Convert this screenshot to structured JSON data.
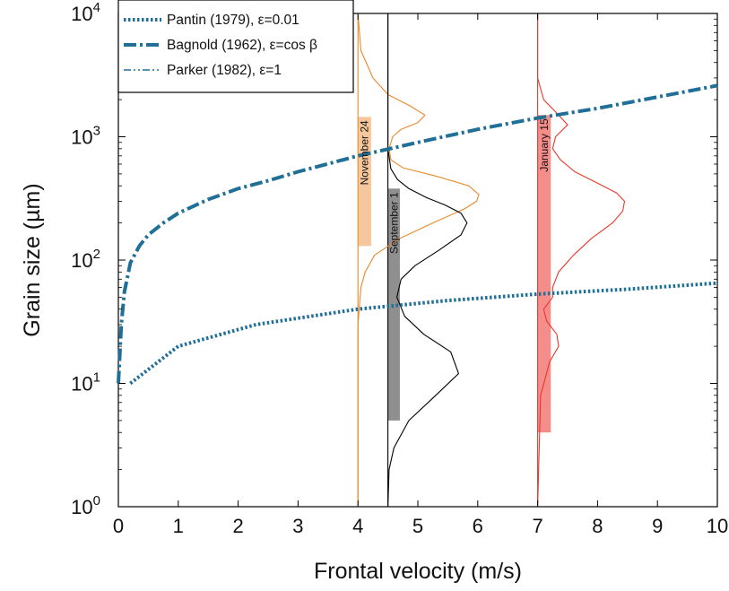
{
  "chart_data": {
    "type": "line",
    "xlabel": "Frontal velocity (m/s)",
    "ylabel": "Grain size  (µm)",
    "xlim": [
      0,
      10
    ],
    "ylim": [
      1,
      10000
    ],
    "yscale": "log",
    "grid": false,
    "legend_position": "top-left",
    "x_ticks": [
      "0",
      "1",
      "2",
      "3",
      "4",
      "5",
      "6",
      "7",
      "8",
      "9",
      "10"
    ],
    "y_ticks": [
      {
        "value": 1,
        "base": "10",
        "exp": "0"
      },
      {
        "value": 10,
        "base": "10",
        "exp": "1"
      },
      {
        "value": 100,
        "base": "10",
        "exp": "2"
      },
      {
        "value": 1000,
        "base": "10",
        "exp": "3"
      },
      {
        "value": 10000,
        "base": "10",
        "exp": "4"
      }
    ],
    "series": [
      {
        "name": "Pantin (1979), ε=0.01",
        "style": "dotted",
        "color": "#1f6f97",
        "x": [
          0.2,
          1.0,
          2.3,
          4.0,
          5.5,
          7.0,
          8.5,
          10.0
        ],
        "y": [
          10,
          20,
          30,
          40,
          47,
          53,
          58,
          65
        ]
      },
      {
        "name": "Bagnold (1962), ε=cos β",
        "style": "dashdot",
        "color": "#1f6f97",
        "x": [
          0.0,
          0.05,
          0.1,
          0.2,
          0.35,
          0.5,
          0.75,
          1.0,
          1.5,
          2.0,
          2.5,
          3.0,
          4.0,
          5.0,
          6.0,
          7.0,
          8.0,
          9.0,
          10.0
        ],
        "y": [
          10,
          30,
          55,
          95,
          130,
          160,
          200,
          240,
          310,
          380,
          440,
          520,
          700,
          900,
          1150,
          1420,
          1700,
          2100,
          2600
        ]
      },
      {
        "name": "Parker (1982), ε=1",
        "style": "dashdotdot",
        "color": "#1f6f97",
        "x": [],
        "y": []
      }
    ],
    "events": [
      {
        "label": "November 24",
        "x": 4.0,
        "color": "#e8892a",
        "band_color": "#f6c79c",
        "band_x": [
          4.0,
          4.22
        ],
        "band_y": [
          130,
          1450
        ]
      },
      {
        "label": "September 1",
        "x": 4.5,
        "color": "#000000",
        "band_color": "#8f8f8f",
        "band_x": [
          4.5,
          4.7
        ],
        "band_y": [
          5,
          380
        ]
      },
      {
        "label": "January 15",
        "x": 7.0,
        "color": "#e8372a",
        "band_color": "#f58e8b",
        "band_x": [
          7.0,
          7.22
        ],
        "band_y": [
          4,
          1500
        ]
      }
    ],
    "distributions": [
      {
        "event": "November 24",
        "color": "#e8892a",
        "y": [
          1,
          30,
          60,
          80,
          110,
          150,
          200,
          260,
          300,
          340,
          400,
          480,
          560,
          650,
          800,
          1000,
          1150,
          1300,
          1500,
          1800,
          2200,
          3000,
          5000,
          10000
        ],
        "x": [
          4.0,
          4.0,
          4.05,
          4.12,
          4.28,
          4.7,
          5.25,
          5.78,
          5.98,
          6.02,
          5.85,
          5.3,
          4.75,
          4.55,
          4.52,
          4.58,
          4.72,
          5.0,
          5.12,
          4.85,
          4.5,
          4.25,
          4.05,
          4.0
        ]
      },
      {
        "event": "September 1",
        "color": "#000000",
        "y": [
          1,
          2,
          3,
          5,
          8,
          12,
          18,
          25,
          35,
          50,
          70,
          90,
          120,
          160,
          200,
          240,
          280,
          320,
          380,
          450,
          550,
          800,
          1500,
          10000
        ],
        "x": [
          4.5,
          4.52,
          4.6,
          4.85,
          5.3,
          5.68,
          5.55,
          5.1,
          4.78,
          4.65,
          4.72,
          4.95,
          5.35,
          5.72,
          5.82,
          5.72,
          5.45,
          5.15,
          4.85,
          4.66,
          4.55,
          4.5,
          4.5,
          4.5
        ]
      },
      {
        "event": "January 15",
        "color": "#e8372a",
        "y": [
          1,
          8,
          15,
          20,
          25,
          32,
          40,
          50,
          60,
          80,
          110,
          150,
          200,
          250,
          300,
          350,
          420,
          520,
          650,
          800,
          1000,
          1250,
          1500,
          2000,
          3000,
          10000
        ],
        "x": [
          7.0,
          7.05,
          7.2,
          7.35,
          7.32,
          7.15,
          7.1,
          7.25,
          7.25,
          7.35,
          7.6,
          7.9,
          8.25,
          8.42,
          8.45,
          8.32,
          8.0,
          7.62,
          7.38,
          7.25,
          7.3,
          7.5,
          7.35,
          7.1,
          7.0,
          7.0
        ]
      }
    ]
  }
}
